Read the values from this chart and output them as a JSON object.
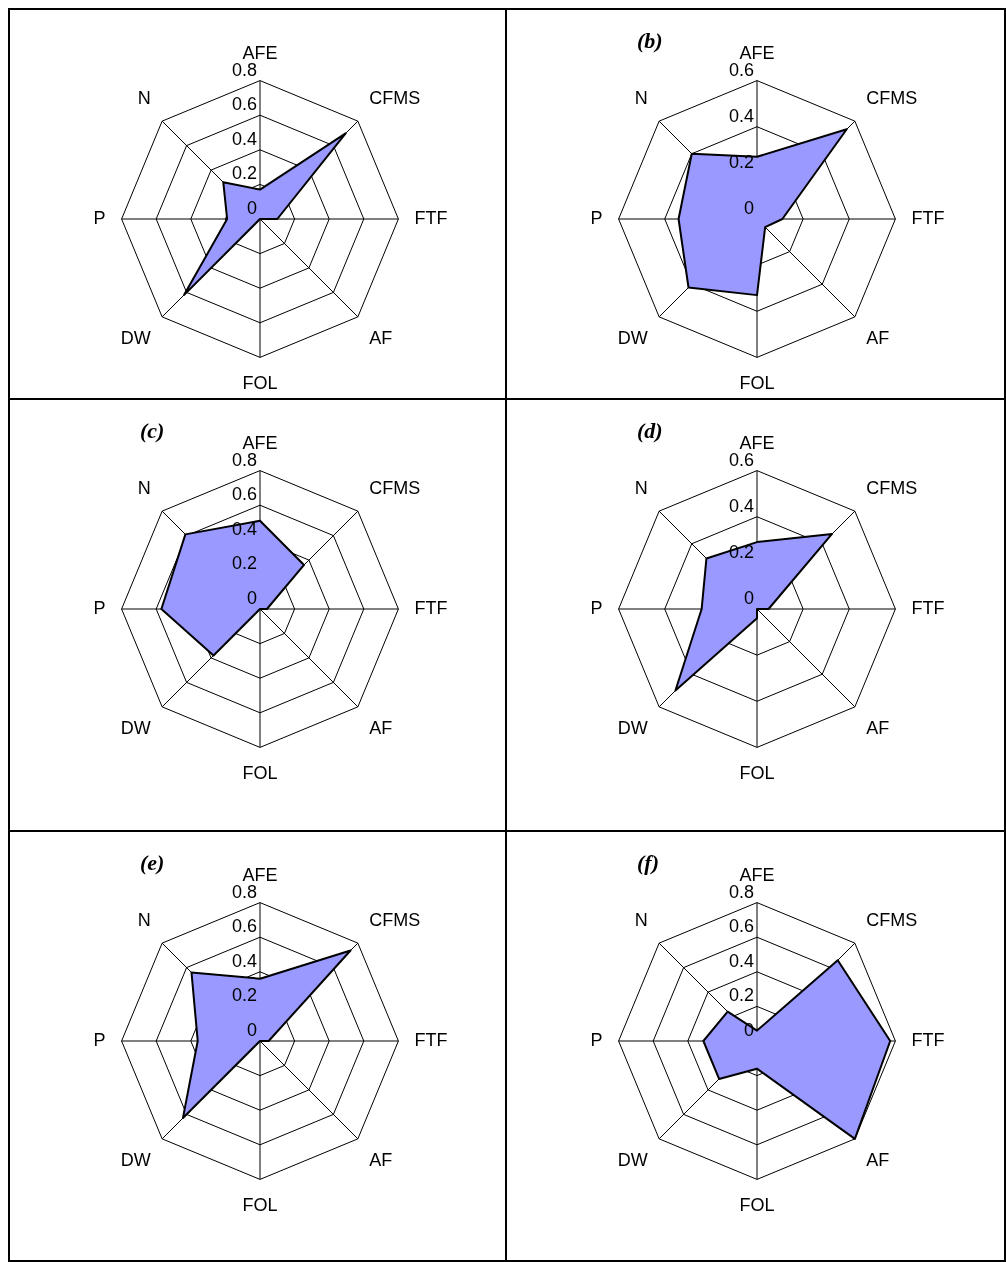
{
  "chart_data": [
    {
      "type": "radar",
      "categories": [
        "AFE",
        "CFMS",
        "FTF",
        "AF",
        "FOL",
        "DW",
        "P",
        "N"
      ],
      "ylim": [
        0,
        0.8
      ],
      "yticks": [
        0,
        0.2,
        0.4,
        0.6,
        0.8
      ],
      "grid": true,
      "series": [
        {
          "color": "#9999ff",
          "values": [
            0.17,
            0.7,
            0.1,
            0,
            0,
            0.62,
            0.19,
            0.3
          ]
        }
      ]
    },
    {
      "type": "radar",
      "title": "(b)",
      "categories": [
        "AFE",
        "CFMS",
        "FTF",
        "AF",
        "FOL",
        "DW",
        "P",
        "N"
      ],
      "ylim": [
        0,
        0.6
      ],
      "yticks": [
        0,
        0.2,
        0.4,
        0.6
      ],
      "grid": true,
      "series": [
        {
          "color": "#9999ff",
          "values": [
            0.27,
            0.55,
            0.11,
            0.05,
            0.33,
            0.42,
            0.34,
            0.4
          ]
        }
      ]
    },
    {
      "type": "radar",
      "title": "(c)",
      "categories": [
        "AFE",
        "CFMS",
        "FTF",
        "AF",
        "FOL",
        "DW",
        "P",
        "N"
      ],
      "ylim": [
        0,
        0.8
      ],
      "yticks": [
        0,
        0.2,
        0.4,
        0.6,
        0.8
      ],
      "grid": true,
      "series": [
        {
          "color": "#9999ff",
          "values": [
            0.51,
            0.36,
            0.04,
            0,
            0,
            0.38,
            0.57,
            0.61
          ]
        }
      ]
    },
    {
      "type": "radar",
      "title": "(d)",
      "categories": [
        "AFE",
        "CFMS",
        "FTF",
        "AF",
        "FOL",
        "DW",
        "P",
        "N"
      ],
      "ylim": [
        0,
        0.6
      ],
      "yticks": [
        0,
        0.2,
        0.4,
        0.6
      ],
      "grid": true,
      "series": [
        {
          "color": "#9999ff",
          "values": [
            0.29,
            0.46,
            0.05,
            0,
            0.04,
            0.5,
            0.24,
            0.31
          ]
        }
      ]
    },
    {
      "type": "radar",
      "title": "(e)",
      "categories": [
        "AFE",
        "CFMS",
        "FTF",
        "AF",
        "FOL",
        "DW",
        "P",
        "N"
      ],
      "ylim": [
        0,
        0.8
      ],
      "yticks": [
        0,
        0.2,
        0.4,
        0.6,
        0.8
      ],
      "grid": true,
      "series": [
        {
          "color": "#9999ff",
          "values": [
            0.36,
            0.74,
            0.05,
            0,
            0,
            0.63,
            0.36,
            0.56
          ]
        }
      ]
    },
    {
      "type": "radar",
      "title": "(f)",
      "categories": [
        "AFE",
        "CFMS",
        "FTF",
        "AF",
        "FOL",
        "DW",
        "P",
        "N"
      ],
      "ylim": [
        0,
        0.8
      ],
      "yticks": [
        0,
        0.2,
        0.4,
        0.6,
        0.8
      ],
      "grid": true,
      "series": [
        {
          "color": "#9999ff",
          "values": [
            0.06,
            0.66,
            0.77,
            0.8,
            0.16,
            0.31,
            0.31,
            0.24
          ]
        }
      ]
    }
  ]
}
